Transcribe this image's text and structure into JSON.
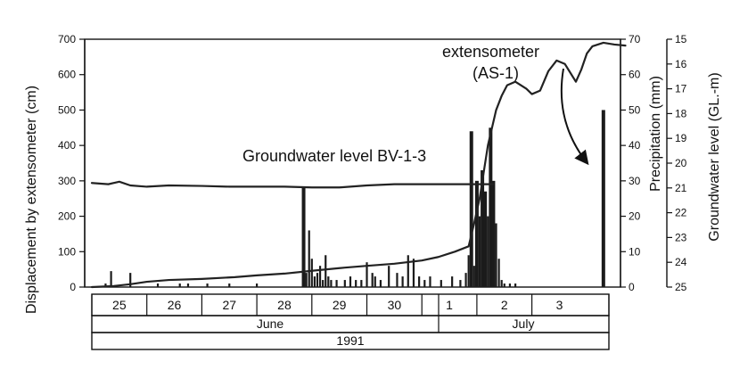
{
  "chart_data": {
    "type": "line",
    "title": "",
    "xlabel": "",
    "ylabel": "Displacement by extensometer (cm)",
    "ylabel_precip": "Precipitation (mm)",
    "ylabel_groundwater": "Groundwater level (GL.-m)",
    "ylim": [
      0,
      700
    ],
    "precip_lim": [
      0,
      70
    ],
    "groundwater_lim": [
      15,
      25
    ],
    "y_ticks": [
      0,
      100,
      200,
      300,
      400,
      500,
      600,
      700
    ],
    "precip_ticks": [
      0,
      10,
      20,
      30,
      40,
      50,
      60,
      70
    ],
    "groundwater_ticks": [
      15,
      16,
      17,
      18,
      19,
      20,
      21,
      22,
      23,
      24,
      25
    ],
    "days": [
      "25",
      "26",
      "27",
      "28",
      "29",
      "30",
      "1",
      "2",
      "3"
    ],
    "months": [
      "June",
      "July"
    ],
    "year": "1991",
    "annotations": {
      "extensometer_line1": "extensometer",
      "extensometer_line2": "(AS-1)",
      "groundwater": "Groundwater level BV-1-3"
    },
    "series": [
      {
        "name": "extensometer (AS-1)",
        "unit": "cm",
        "x": [
          25.0,
          25.4,
          25.7,
          26.0,
          26.4,
          27.0,
          27.6,
          28.0,
          28.5,
          29.0,
          29.6,
          30.0,
          30.5,
          31.0,
          31.3,
          31.6,
          31.85,
          31.95,
          32.05,
          32.2,
          32.35,
          32.45,
          32.55,
          32.7,
          32.9,
          33.0,
          33.15,
          33.3,
          33.45,
          33.6,
          33.8,
          33.9,
          34.0,
          34.1,
          34.3,
          34.5,
          34.7
        ],
        "values": [
          0,
          3,
          8,
          15,
          20,
          23,
          28,
          33,
          38,
          46,
          55,
          60,
          66,
          75,
          85,
          100,
          115,
          180,
          250,
          400,
          500,
          540,
          570,
          580,
          560,
          545,
          555,
          610,
          640,
          630,
          580,
          615,
          660,
          680,
          690,
          685,
          682
        ]
      },
      {
        "name": "Groundwater level BV-1-3",
        "unit": "GL.-m",
        "x": [
          25.0,
          25.3,
          25.5,
          25.7,
          26.0,
          26.4,
          27.0,
          27.5,
          28.0,
          28.5,
          29.0,
          29.5,
          30.0,
          30.5,
          31.0,
          31.5,
          32.0,
          32.3
        ],
        "values": [
          20.8,
          20.85,
          20.75,
          20.9,
          20.95,
          20.9,
          20.92,
          20.95,
          20.95,
          20.95,
          20.98,
          20.98,
          20.9,
          20.85,
          20.85,
          20.85,
          20.85,
          20.85
        ]
      },
      {
        "name": "Precipitation",
        "unit": "mm",
        "type": "bar",
        "x": [
          25.25,
          25.35,
          25.7,
          26.2,
          26.6,
          26.75,
          27.1,
          27.5,
          28.0,
          28.85,
          28.9,
          28.95,
          29.0,
          29.05,
          29.1,
          29.15,
          29.2,
          29.25,
          29.3,
          29.35,
          29.45,
          29.6,
          29.7,
          29.8,
          29.9,
          30.0,
          30.1,
          30.15,
          30.25,
          30.4,
          30.55,
          30.65,
          30.75,
          30.85,
          30.95,
          31.05,
          31.15,
          31.35,
          31.55,
          31.7,
          31.8,
          31.85,
          31.9,
          31.95,
          32.0,
          32.05,
          32.1,
          32.15,
          32.2,
          32.25,
          32.3,
          32.35,
          32.4,
          32.45,
          32.5,
          32.6,
          32.7,
          34.3
        ],
        "values": [
          1,
          4.5,
          4,
          1,
          1,
          1,
          1,
          1,
          1,
          28,
          4,
          16,
          8,
          3,
          4,
          6,
          2,
          9,
          3,
          2,
          2,
          2,
          3,
          2,
          2,
          7,
          4,
          3,
          2,
          6,
          4,
          3,
          9,
          8,
          3,
          2,
          3,
          2,
          3,
          2,
          4,
          9,
          44,
          6,
          30,
          20,
          33,
          27,
          20,
          45,
          30,
          18,
          8,
          2,
          1,
          1,
          1,
          50
        ]
      }
    ]
  }
}
